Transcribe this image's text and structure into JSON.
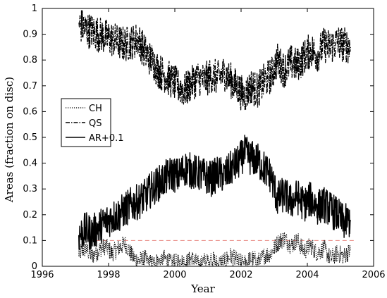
{
  "chart_data": {
    "type": "line",
    "title": "",
    "xlabel": "Year",
    "ylabel": "Areas (fraction on disc)",
    "xlim": [
      1996,
      2006
    ],
    "ylim": [
      0,
      1
    ],
    "xticks": [
      "1996",
      "1998",
      "2000",
      "2002",
      "2004",
      "2006"
    ],
    "yticks": [
      "0",
      "0.1",
      "0.2",
      "0.3",
      "0.4",
      "0.5",
      "0.6",
      "0.7",
      "0.8",
      "0.9",
      "1"
    ],
    "grid": false,
    "legend_position": "center-left",
    "series": [
      {
        "name": "CH",
        "style": "dotted",
        "color": "#000000",
        "x": [
          1997.1,
          1997.3,
          1997.5,
          1997.7,
          1997.9,
          1998.1,
          1998.3,
          1998.5,
          1998.7,
          1998.9,
          1999.1,
          1999.3,
          1999.5,
          1999.7,
          1999.9,
          2000.1,
          2000.3,
          2000.5,
          2000.7,
          2000.9,
          2001.1,
          2001.3,
          2001.5,
          2001.7,
          2001.9,
          2002.1,
          2002.3,
          2002.5,
          2002.7,
          2002.9,
          2003.1,
          2003.3,
          2003.5,
          2003.7,
          2003.9,
          2004.1,
          2004.3,
          2004.5,
          2004.7,
          2004.9,
          2005.1,
          2005.3
        ],
        "y": [
          0.05,
          0.07,
          0.04,
          0.06,
          0.08,
          0.05,
          0.07,
          0.09,
          0.04,
          0.02,
          0.03,
          0.01,
          0.02,
          0.03,
          0.01,
          0.02,
          0.01,
          0.03,
          0.01,
          0.02,
          0.03,
          0.01,
          0.02,
          0.04,
          0.02,
          0.01,
          0.03,
          0.02,
          0.04,
          0.05,
          0.09,
          0.11,
          0.08,
          0.1,
          0.06,
          0.08,
          0.05,
          0.07,
          0.03,
          0.05,
          0.04,
          0.06
        ]
      },
      {
        "name": "QS",
        "style": "dash-dot",
        "color": "#000000",
        "x": [
          1997.1,
          1997.3,
          1997.5,
          1997.7,
          1997.9,
          1998.1,
          1998.3,
          1998.5,
          1998.7,
          1998.9,
          1999.1,
          1999.3,
          1999.5,
          1999.7,
          1999.9,
          2000.1,
          2000.3,
          2000.5,
          2000.7,
          2000.9,
          2001.1,
          2001.3,
          2001.5,
          2001.7,
          2001.9,
          2002.1,
          2002.3,
          2002.5,
          2002.7,
          2002.9,
          2003.1,
          2003.3,
          2003.5,
          2003.7,
          2003.9,
          2004.1,
          2004.3,
          2004.5,
          2004.7,
          2004.9,
          2005.1,
          2005.3
        ],
        "y": [
          0.94,
          0.92,
          0.91,
          0.9,
          0.89,
          0.88,
          0.87,
          0.86,
          0.87,
          0.88,
          0.83,
          0.8,
          0.76,
          0.74,
          0.72,
          0.7,
          0.68,
          0.71,
          0.73,
          0.72,
          0.74,
          0.73,
          0.75,
          0.72,
          0.69,
          0.66,
          0.7,
          0.68,
          0.72,
          0.74,
          0.8,
          0.76,
          0.79,
          0.78,
          0.81,
          0.84,
          0.82,
          0.86,
          0.85,
          0.87,
          0.86,
          0.85
        ]
      },
      {
        "name": "AR+0.1",
        "style": "solid",
        "color": "#000000",
        "x": [
          1997.1,
          1997.3,
          1997.5,
          1997.7,
          1997.9,
          1998.1,
          1998.3,
          1998.5,
          1998.7,
          1998.9,
          1999.1,
          1999.3,
          1999.5,
          1999.7,
          1999.9,
          2000.1,
          2000.3,
          2000.5,
          2000.7,
          2000.9,
          2001.1,
          2001.3,
          2001.5,
          2001.7,
          2001.9,
          2002.1,
          2002.3,
          2002.5,
          2002.7,
          2002.9,
          2003.1,
          2003.3,
          2003.5,
          2003.7,
          2003.9,
          2004.1,
          2004.3,
          2004.5,
          2004.7,
          2004.9,
          2005.1,
          2005.3
        ],
        "y": [
          0.12,
          0.14,
          0.13,
          0.15,
          0.17,
          0.19,
          0.2,
          0.22,
          0.24,
          0.25,
          0.27,
          0.3,
          0.32,
          0.34,
          0.36,
          0.35,
          0.38,
          0.37,
          0.36,
          0.35,
          0.34,
          0.36,
          0.35,
          0.38,
          0.4,
          0.44,
          0.42,
          0.41,
          0.38,
          0.35,
          0.26,
          0.28,
          0.25,
          0.27,
          0.24,
          0.26,
          0.23,
          0.24,
          0.22,
          0.2,
          0.17,
          0.18
        ]
      }
    ],
    "reference_line": {
      "y": 0.1,
      "color": "#e8837c",
      "style": "dashed"
    }
  }
}
